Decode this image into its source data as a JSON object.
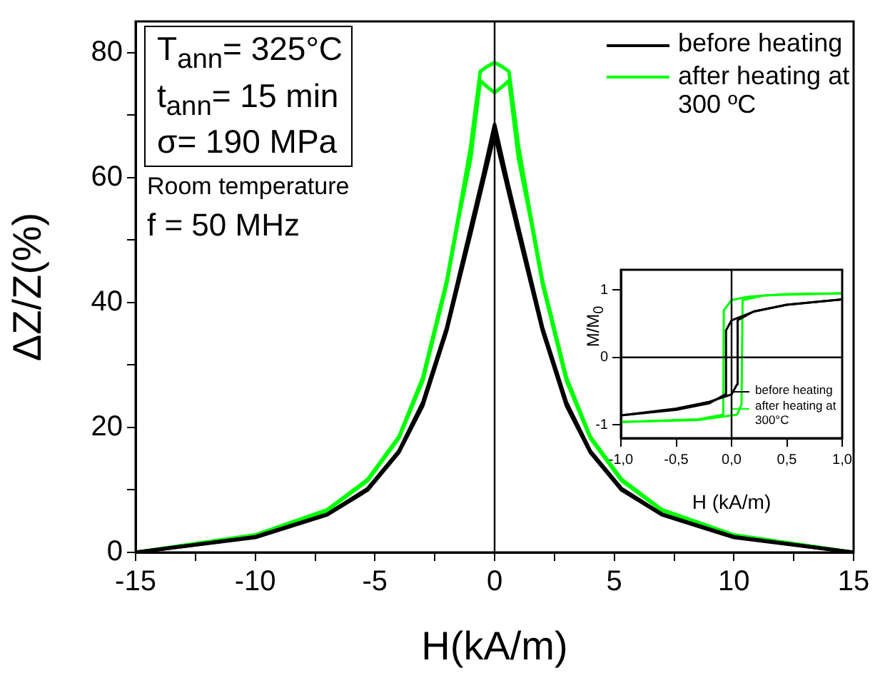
{
  "chart_data": [
    {
      "type": "line",
      "xlabel": "H(kA/m)",
      "ylabel": "ΔZ/Z(%)",
      "xlim": [
        -15,
        15
      ],
      "ylim": [
        0,
        85
      ],
      "xticks": [
        -15,
        {
          "value": -12.5,
          "label": null
        },
        -10,
        {
          "value": -7.5,
          "label": null
        },
        -5,
        {
          "value": -2.5,
          "label": null
        },
        0,
        {
          "value": 2.5,
          "label": null
        },
        5,
        {
          "value": 7.5,
          "label": null
        },
        10,
        {
          "value": 12.5,
          "label": null
        },
        15
      ],
      "yticks": [
        0,
        {
          "value": 10,
          "label": null
        },
        20,
        {
          "value": 30,
          "label": null
        },
        40,
        {
          "value": 50,
          "label": null
        },
        60,
        {
          "value": 70,
          "label": null
        },
        80
      ],
      "legend": "top right",
      "marker": "none",
      "line_style": "solid",
      "ref_lines": [
        {
          "axis": "x",
          "value": 0,
          "color": "#000000"
        }
      ],
      "annotations": [
        "T$_{ann}$= 325°C",
        "t$_{ann}$= 15 min",
        "σ= 190 MPa",
        "Room temperature",
        "f = 50 MHz"
      ],
      "series": [
        {
          "name": "before heating",
          "color": "#000000",
          "x": [
            -15,
            -10,
            -7,
            -5.3,
            -4,
            -3,
            -2,
            -1,
            -0.5,
            0,
            0.5,
            1,
            2,
            3,
            4,
            5.3,
            7,
            10,
            15
          ],
          "values": [
            0,
            2.5,
            6.1,
            10.2,
            16.2,
            24,
            36,
            52,
            60,
            68.5,
            60,
            52,
            36,
            24,
            16.2,
            10.2,
            6.1,
            2.5,
            0
          ]
        },
        {
          "color": "#000000",
          "x": [
            -15,
            -10,
            -7,
            -5.3,
            -4,
            -3,
            -2,
            -1,
            -0.5,
            0,
            0.5,
            1,
            2,
            3,
            4,
            5.3,
            7,
            10,
            15
          ],
          "values": [
            0,
            2.4,
            6,
            10,
            16,
            23.5,
            35.5,
            51,
            59,
            67,
            59,
            51,
            35.5,
            23.5,
            16,
            10,
            6,
            2.4,
            0
          ]
        },
        {
          "name": "after heating at 300 ºC",
          "color": "#00ff00",
          "x": [
            -15,
            -10,
            -7,
            -5.3,
            -4,
            -3,
            -2,
            -1.5,
            -1,
            -0.6,
            -0.3,
            0,
            0.3,
            0.6,
            1,
            1.5,
            2,
            3,
            4,
            5.3,
            7,
            10,
            15
          ],
          "values": [
            0,
            2.8,
            6.8,
            11.7,
            18.5,
            28,
            43.5,
            54,
            65,
            77,
            77.8,
            78.4,
            77.8,
            77,
            65,
            54,
            43.5,
            28,
            18.5,
            11.7,
            6.8,
            2.8,
            0
          ]
        },
        {
          "color": "#00ff00",
          "x": [
            -15,
            -10,
            -7,
            -5.3,
            -4,
            -3,
            -2,
            -1.5,
            -1,
            -0.6,
            -0.3,
            0,
            0.3,
            0.6,
            1,
            1.5,
            2,
            3,
            4,
            5.3,
            7,
            10,
            15
          ],
          "values": [
            0,
            2.7,
            6.7,
            11.5,
            18.3,
            27.5,
            43,
            53.5,
            63,
            75.5,
            74.5,
            73.6,
            74.5,
            75.5,
            63,
            53.5,
            43,
            27.5,
            18.3,
            11.5,
            6.7,
            2.7,
            0
          ]
        }
      ]
    },
    {
      "type": "line",
      "xlabel": "H (kA/m)",
      "ylabel": "M/M$_{0}$",
      "xlim": [
        -1,
        1
      ],
      "ylim": [
        -1.2,
        1.3
      ],
      "xticks": [
        {
          "value": -1,
          "label": "-1,0"
        },
        {
          "value": -0.5,
          "label": "-0,5"
        },
        {
          "value": 0,
          "label": "0,0"
        },
        {
          "value": 0.5,
          "label": "0,5"
        },
        {
          "value": 1,
          "label": "1,0"
        }
      ],
      "yticks": [
        -1,
        0,
        1
      ],
      "legend": "bottom right",
      "marker": "none",
      "line_style": "solid",
      "ref_lines": [
        {
          "axis": "x",
          "value": 0,
          "color": "#000000"
        },
        {
          "axis": "y",
          "value": 0,
          "color": "#000000"
        }
      ],
      "series": [
        {
          "name": "before heating",
          "color": "#000000",
          "x": [
            -1,
            -0.5,
            -0.2,
            -0.055,
            -0.05,
            0,
            0.2,
            0.5,
            1
          ],
          "values": [
            -0.86,
            -0.78,
            -0.68,
            -0.55,
            0.4,
            0.55,
            0.68,
            0.78,
            0.86
          ]
        },
        {
          "color": "#000000",
          "x": [
            -1,
            -0.5,
            -0.2,
            0,
            0.05,
            0.055,
            0.2,
            0.5,
            1
          ],
          "values": [
            -0.86,
            -0.76,
            -0.66,
            -0.55,
            -0.4,
            0.55,
            0.68,
            0.78,
            0.86
          ]
        },
        {
          "name": "after heating at 300°C",
          "color": "#00ff00",
          "x": [
            -1,
            -0.3,
            -0.075,
            -0.07,
            0,
            0.15,
            0.5,
            1
          ],
          "values": [
            -0.96,
            -0.92,
            -0.85,
            0.7,
            0.85,
            0.9,
            0.94,
            0.95
          ]
        },
        {
          "color": "#00ff00",
          "x": [
            -1,
            -0.3,
            0.05,
            0.09,
            0.1,
            0.3,
            1
          ],
          "values": [
            -0.96,
            -0.93,
            -0.85,
            -0.7,
            0.85,
            0.92,
            0.95
          ]
        }
      ]
    }
  ]
}
